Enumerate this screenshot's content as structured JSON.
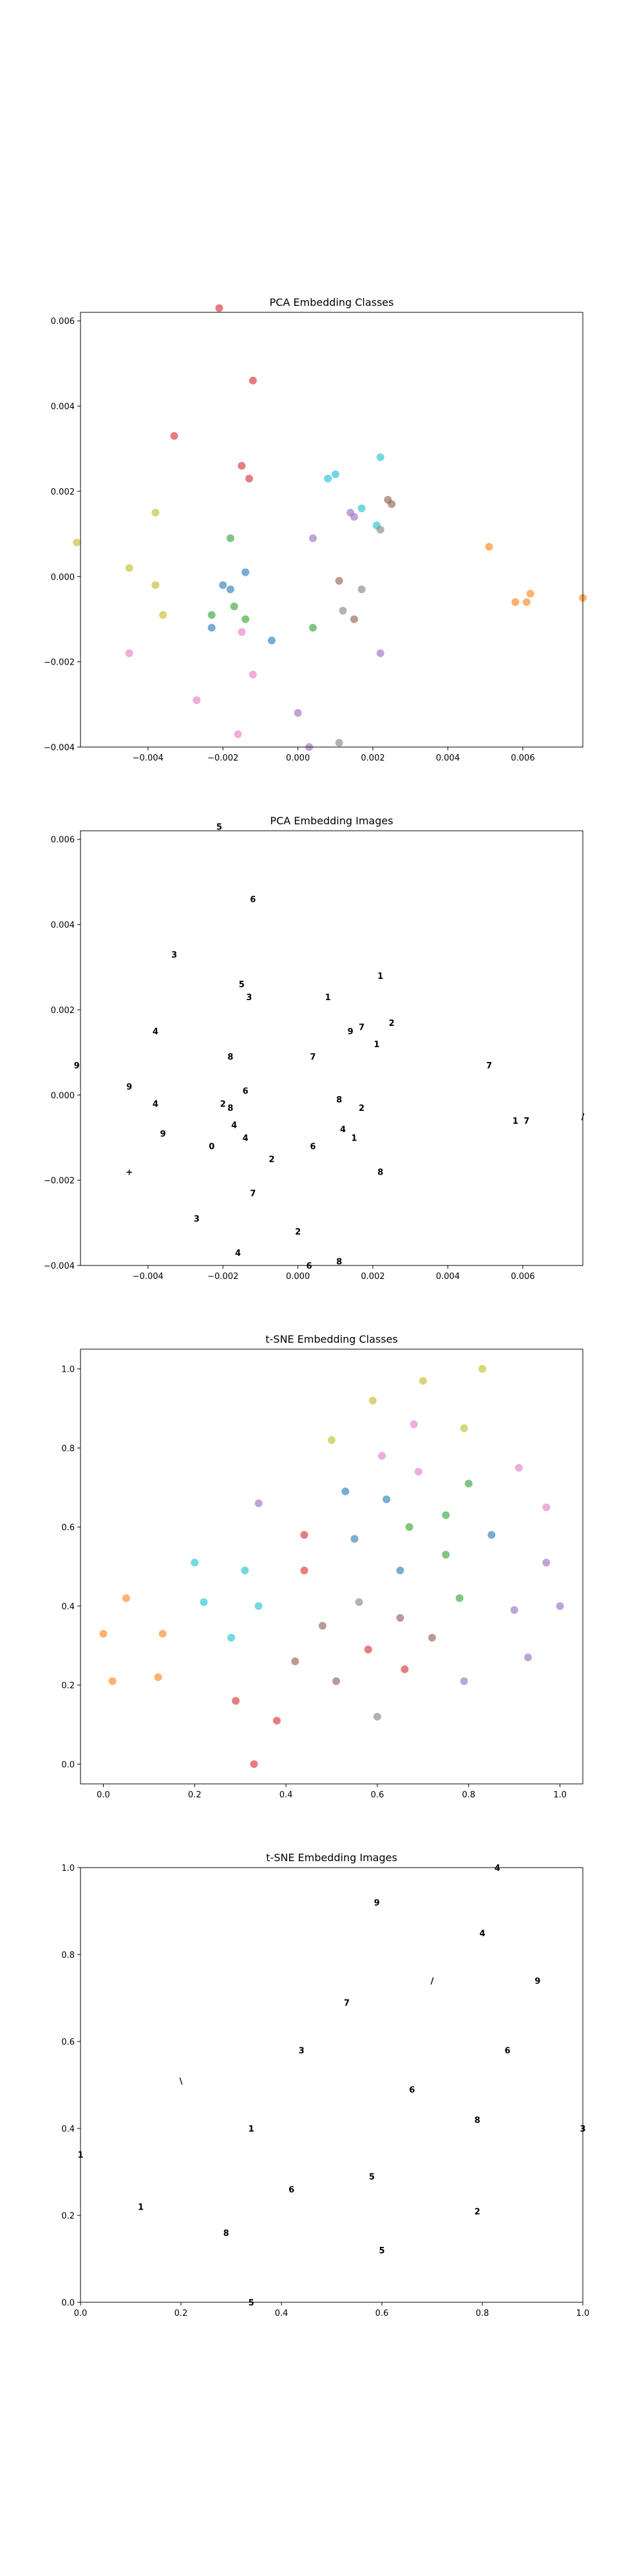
{
  "chart_data": [
    {
      "type": "scatter",
      "title": "PCA Embedding Classes",
      "xlim": [
        -0.0058,
        0.0076
      ],
      "ylim": [
        -0.004,
        0.0062
      ],
      "xticks": [
        -0.004,
        -0.002,
        0.0,
        0.002,
        0.004,
        0.006
      ],
      "xtick_labels": [
        "−0.004",
        "−0.002",
        "0.000",
        "0.002",
        "0.004",
        "0.006"
      ],
      "yticks": [
        -0.004,
        -0.002,
        0.0,
        0.002,
        0.004,
        0.006
      ],
      "ytick_labels": [
        "−0.004",
        "−0.002",
        "0.000",
        "0.002",
        "0.004",
        "0.006"
      ],
      "marker": "dot",
      "points": [
        {
          "x": -0.0021,
          "y": 0.0063,
          "c": "#d62728"
        },
        {
          "x": -0.0012,
          "y": 0.0046,
          "c": "#d62728"
        },
        {
          "x": -0.0033,
          "y": 0.0033,
          "c": "#d62728"
        },
        {
          "x": -0.0015,
          "y": 0.0026,
          "c": "#d62728"
        },
        {
          "x": -0.0013,
          "y": 0.0023,
          "c": "#d62728"
        },
        {
          "x": 0.0022,
          "y": 0.0028,
          "c": "#17becf"
        },
        {
          "x": 0.001,
          "y": 0.0024,
          "c": "#17becf"
        },
        {
          "x": 0.0008,
          "y": 0.0023,
          "c": "#17becf"
        },
        {
          "x": 0.0017,
          "y": 0.0016,
          "c": "#17becf"
        },
        {
          "x": 0.0021,
          "y": 0.0012,
          "c": "#17becf"
        },
        {
          "x": 0.0024,
          "y": 0.0018,
          "c": "#8c564b"
        },
        {
          "x": 0.0025,
          "y": 0.0017,
          "c": "#8c564b"
        },
        {
          "x": 0.0014,
          "y": 0.0015,
          "c": "#9467bd"
        },
        {
          "x": 0.0015,
          "y": 0.0014,
          "c": "#9467bd"
        },
        {
          "x": 0.0022,
          "y": 0.0011,
          "c": "#7f7f7f"
        },
        {
          "x": 0.0004,
          "y": 0.0009,
          "c": "#9467bd"
        },
        {
          "x": -0.0038,
          "y": 0.0015,
          "c": "#bcbd22"
        },
        {
          "x": -0.0045,
          "y": 0.0002,
          "c": "#bcbd22"
        },
        {
          "x": -0.0038,
          "y": -0.0002,
          "c": "#bcbd22"
        },
        {
          "x": -0.0036,
          "y": -0.0009,
          "c": "#bcbd22"
        },
        {
          "x": -0.0059,
          "y": 0.0008,
          "c": "#bcbd22"
        },
        {
          "x": -0.0018,
          "y": 0.0009,
          "c": "#2ca02c"
        },
        {
          "x": -0.0014,
          "y": 0.0001,
          "c": "#1f77b4"
        },
        {
          "x": -0.002,
          "y": -0.0002,
          "c": "#1f77b4"
        },
        {
          "x": -0.0018,
          "y": -0.0003,
          "c": "#1f77b4"
        },
        {
          "x": -0.0017,
          "y": -0.0007,
          "c": "#2ca02c"
        },
        {
          "x": -0.0023,
          "y": -0.0009,
          "c": "#2ca02c"
        },
        {
          "x": -0.0014,
          "y": -0.001,
          "c": "#2ca02c"
        },
        {
          "x": -0.0023,
          "y": -0.0012,
          "c": "#1f77b4"
        },
        {
          "x": -0.0015,
          "y": -0.0013,
          "c": "#e377c2"
        },
        {
          "x": -0.0007,
          "y": -0.0015,
          "c": "#1f77b4"
        },
        {
          "x": 0.0004,
          "y": -0.0012,
          "c": "#2ca02c"
        },
        {
          "x": 0.0011,
          "y": -0.0001,
          "c": "#8c564b"
        },
        {
          "x": 0.0017,
          "y": -0.0003,
          "c": "#7f7f7f"
        },
        {
          "x": 0.0012,
          "y": -0.0008,
          "c": "#7f7f7f"
        },
        {
          "x": 0.0015,
          "y": -0.001,
          "c": "#8c564b"
        },
        {
          "x": 0.0022,
          "y": -0.0018,
          "c": "#9467bd"
        },
        {
          "x": -0.0045,
          "y": -0.0018,
          "c": "#e377c2"
        },
        {
          "x": -0.0012,
          "y": -0.0023,
          "c": "#e377c2"
        },
        {
          "x": -0.0027,
          "y": -0.0029,
          "c": "#e377c2"
        },
        {
          "x": -0.0016,
          "y": -0.0037,
          "c": "#e377c2"
        },
        {
          "x": 0.0,
          "y": -0.0032,
          "c": "#9467bd"
        },
        {
          "x": 0.0003,
          "y": -0.004,
          "c": "#9467bd"
        },
        {
          "x": 0.0011,
          "y": -0.0039,
          "c": "#7f7f7f"
        },
        {
          "x": 0.0051,
          "y": 0.0007,
          "c": "#ff7f0e"
        },
        {
          "x": 0.0058,
          "y": -0.0006,
          "c": "#ff7f0e"
        },
        {
          "x": 0.0061,
          "y": -0.0006,
          "c": "#ff7f0e"
        },
        {
          "x": 0.0062,
          "y": -0.0004,
          "c": "#ff7f0e"
        },
        {
          "x": 0.0076,
          "y": -0.0005,
          "c": "#ff7f0e"
        }
      ]
    },
    {
      "type": "scatter",
      "title": "PCA Embedding Images",
      "xlim": [
        -0.0058,
        0.0076
      ],
      "ylim": [
        -0.004,
        0.0062
      ],
      "xticks": [
        -0.004,
        -0.002,
        0.0,
        0.002,
        0.004,
        0.006
      ],
      "xtick_labels": [
        "−0.004",
        "−0.002",
        "0.000",
        "0.002",
        "0.004",
        "0.006"
      ],
      "yticks": [
        -0.004,
        -0.002,
        0.0,
        0.002,
        0.004,
        0.006
      ],
      "ytick_labels": [
        "−0.004",
        "−0.002",
        "0.000",
        "0.002",
        "0.004",
        "0.006"
      ],
      "marker": "glyph",
      "points": [
        {
          "x": -0.0021,
          "y": 0.0063,
          "g": "5"
        },
        {
          "x": -0.0012,
          "y": 0.0046,
          "g": "6"
        },
        {
          "x": -0.0033,
          "y": 0.0033,
          "g": "3"
        },
        {
          "x": -0.0015,
          "y": 0.0026,
          "g": "5"
        },
        {
          "x": -0.0013,
          "y": 0.0023,
          "g": "3"
        },
        {
          "x": 0.0022,
          "y": 0.0028,
          "g": "1"
        },
        {
          "x": 0.0008,
          "y": 0.0023,
          "g": "1"
        },
        {
          "x": 0.0017,
          "y": 0.0016,
          "g": "7"
        },
        {
          "x": 0.0021,
          "y": 0.0012,
          "g": "1"
        },
        {
          "x": 0.0025,
          "y": 0.0017,
          "g": "2"
        },
        {
          "x": 0.0014,
          "y": 0.0015,
          "g": "9"
        },
        {
          "x": 0.0004,
          "y": 0.0009,
          "g": "7"
        },
        {
          "x": -0.0038,
          "y": 0.0015,
          "g": "4"
        },
        {
          "x": -0.0045,
          "y": 0.0002,
          "g": "9"
        },
        {
          "x": -0.0038,
          "y": -0.0002,
          "g": "4"
        },
        {
          "x": -0.0036,
          "y": -0.0009,
          "g": "9"
        },
        {
          "x": -0.0059,
          "y": 0.0007,
          "g": "9"
        },
        {
          "x": -0.0018,
          "y": 0.0009,
          "g": "8"
        },
        {
          "x": -0.0014,
          "y": 0.0001,
          "g": "6"
        },
        {
          "x": -0.002,
          "y": -0.0002,
          "g": "2"
        },
        {
          "x": -0.0018,
          "y": -0.0003,
          "g": "8"
        },
        {
          "x": -0.0017,
          "y": -0.0007,
          "g": "4"
        },
        {
          "x": -0.0014,
          "y": -0.001,
          "g": "4"
        },
        {
          "x": -0.0023,
          "y": -0.0012,
          "g": "0"
        },
        {
          "x": -0.0007,
          "y": -0.0015,
          "g": "2"
        },
        {
          "x": 0.0004,
          "y": -0.0012,
          "g": "6"
        },
        {
          "x": 0.0011,
          "y": -0.0001,
          "g": "8"
        },
        {
          "x": 0.0017,
          "y": -0.0003,
          "g": "2"
        },
        {
          "x": 0.0012,
          "y": -0.0008,
          "g": "4"
        },
        {
          "x": 0.0015,
          "y": -0.001,
          "g": "1"
        },
        {
          "x": 0.0022,
          "y": -0.0018,
          "g": "8"
        },
        {
          "x": -0.0045,
          "y": -0.0018,
          "g": "+"
        },
        {
          "x": -0.0012,
          "y": -0.0023,
          "g": "7"
        },
        {
          "x": -0.0027,
          "y": -0.0029,
          "g": "3"
        },
        {
          "x": -0.0016,
          "y": -0.0037,
          "g": "4"
        },
        {
          "x": 0.0,
          "y": -0.0032,
          "g": "2"
        },
        {
          "x": 0.0003,
          "y": -0.004,
          "g": "6"
        },
        {
          "x": 0.0011,
          "y": -0.0039,
          "g": "8"
        },
        {
          "x": 0.0051,
          "y": 0.0007,
          "g": "7"
        },
        {
          "x": 0.0058,
          "y": -0.0006,
          "g": "1"
        },
        {
          "x": 0.0061,
          "y": -0.0006,
          "g": "7"
        },
        {
          "x": 0.0076,
          "y": -0.0005,
          "g": "/"
        }
      ]
    },
    {
      "type": "scatter",
      "title": "t-SNE Embedding Classes",
      "xlim": [
        -0.05,
        1.05
      ],
      "ylim": [
        -0.05,
        1.05
      ],
      "xticks": [
        0.0,
        0.2,
        0.4,
        0.6,
        0.8,
        1.0
      ],
      "xtick_labels": [
        "0.0",
        "0.2",
        "0.4",
        "0.6",
        "0.8",
        "1.0"
      ],
      "yticks": [
        0.0,
        0.2,
        0.4,
        0.6,
        0.8,
        1.0
      ],
      "ytick_labels": [
        "0.0",
        "0.2",
        "0.4",
        "0.6",
        "0.8",
        "1.0"
      ],
      "marker": "dot",
      "points": [
        {
          "x": 0.83,
          "y": 1.0,
          "c": "#bcbd22"
        },
        {
          "x": 0.7,
          "y": 0.97,
          "c": "#bcbd22"
        },
        {
          "x": 0.59,
          "y": 0.92,
          "c": "#bcbd22"
        },
        {
          "x": 0.5,
          "y": 0.82,
          "c": "#bcbd22"
        },
        {
          "x": 0.79,
          "y": 0.85,
          "c": "#bcbd22"
        },
        {
          "x": 0.68,
          "y": 0.86,
          "c": "#e377c2"
        },
        {
          "x": 0.61,
          "y": 0.78,
          "c": "#e377c2"
        },
        {
          "x": 0.69,
          "y": 0.74,
          "c": "#e377c2"
        },
        {
          "x": 0.91,
          "y": 0.75,
          "c": "#e377c2"
        },
        {
          "x": 0.97,
          "y": 0.65,
          "c": "#e377c2"
        },
        {
          "x": 0.53,
          "y": 0.69,
          "c": "#1f77b4"
        },
        {
          "x": 0.62,
          "y": 0.67,
          "c": "#1f77b4"
        },
        {
          "x": 0.55,
          "y": 0.57,
          "c": "#1f77b4"
        },
        {
          "x": 0.65,
          "y": 0.49,
          "c": "#1f77b4"
        },
        {
          "x": 0.85,
          "y": 0.58,
          "c": "#1f77b4"
        },
        {
          "x": 0.8,
          "y": 0.71,
          "c": "#2ca02c"
        },
        {
          "x": 0.75,
          "y": 0.63,
          "c": "#2ca02c"
        },
        {
          "x": 0.67,
          "y": 0.6,
          "c": "#2ca02c"
        },
        {
          "x": 0.75,
          "y": 0.53,
          "c": "#2ca02c"
        },
        {
          "x": 0.78,
          "y": 0.42,
          "c": "#2ca02c"
        },
        {
          "x": 0.34,
          "y": 0.66,
          "c": "#9467bd"
        },
        {
          "x": 0.97,
          "y": 0.51,
          "c": "#9467bd"
        },
        {
          "x": 0.9,
          "y": 0.39,
          "c": "#9467bd"
        },
        {
          "x": 1.0,
          "y": 0.4,
          "c": "#9467bd"
        },
        {
          "x": 0.93,
          "y": 0.27,
          "c": "#9467bd"
        },
        {
          "x": 0.44,
          "y": 0.58,
          "c": "#d62728"
        },
        {
          "x": 0.44,
          "y": 0.49,
          "c": "#d62728"
        },
        {
          "x": 0.58,
          "y": 0.29,
          "c": "#d62728"
        },
        {
          "x": 0.66,
          "y": 0.24,
          "c": "#d62728"
        },
        {
          "x": 0.29,
          "y": 0.16,
          "c": "#d62728"
        },
        {
          "x": 0.38,
          "y": 0.11,
          "c": "#d62728"
        },
        {
          "x": 0.33,
          "y": 0.0,
          "c": "#d62728"
        },
        {
          "x": 0.2,
          "y": 0.51,
          "c": "#17becf"
        },
        {
          "x": 0.31,
          "y": 0.49,
          "c": "#17becf"
        },
        {
          "x": 0.22,
          "y": 0.41,
          "c": "#17becf"
        },
        {
          "x": 0.34,
          "y": 0.4,
          "c": "#17becf"
        },
        {
          "x": 0.28,
          "y": 0.32,
          "c": "#17becf"
        },
        {
          "x": 0.05,
          "y": 0.42,
          "c": "#ff7f0e"
        },
        {
          "x": 0.0,
          "y": 0.33,
          "c": "#ff7f0e"
        },
        {
          "x": 0.13,
          "y": 0.33,
          "c": "#ff7f0e"
        },
        {
          "x": 0.02,
          "y": 0.21,
          "c": "#ff7f0e"
        },
        {
          "x": 0.12,
          "y": 0.22,
          "c": "#ff7f0e"
        },
        {
          "x": 0.56,
          "y": 0.41,
          "c": "#7f7f7f"
        },
        {
          "x": 0.48,
          "y": 0.35,
          "c": "#8c564b"
        },
        {
          "x": 0.65,
          "y": 0.37,
          "c": "#8c564b"
        },
        {
          "x": 0.42,
          "y": 0.26,
          "c": "#8c564b"
        },
        {
          "x": 0.51,
          "y": 0.21,
          "c": "#8c564b"
        },
        {
          "x": 0.72,
          "y": 0.32,
          "c": "#8c564b"
        },
        {
          "x": 0.6,
          "y": 0.12,
          "c": "#7f7f7f"
        },
        {
          "x": 0.79,
          "y": 0.21,
          "c": "#9467bd"
        }
      ]
    },
    {
      "type": "scatter",
      "title": "t-SNE Embedding Images",
      "xlim": [
        0.0,
        1.0
      ],
      "ylim": [
        0.0,
        1.0
      ],
      "xticks": [
        0.0,
        0.2,
        0.4,
        0.6,
        0.8,
        1.0
      ],
      "xtick_labels": [
        "0.0",
        "0.2",
        "0.4",
        "0.6",
        "0.8",
        "1.0"
      ],
      "yticks": [
        0.0,
        0.2,
        0.4,
        0.6,
        0.8,
        1.0
      ],
      "ytick_labels": [
        "0.0",
        "0.2",
        "0.4",
        "0.6",
        "0.8",
        "1.0"
      ],
      "marker": "glyph",
      "points": [
        {
          "x": 0.83,
          "y": 1.0,
          "g": "4"
        },
        {
          "x": 0.59,
          "y": 0.92,
          "g": "9"
        },
        {
          "x": 0.8,
          "y": 0.85,
          "g": "4"
        },
        {
          "x": 0.7,
          "y": 0.74,
          "g": "/"
        },
        {
          "x": 0.91,
          "y": 0.74,
          "g": "9"
        },
        {
          "x": 0.53,
          "y": 0.69,
          "g": "7"
        },
        {
          "x": 0.44,
          "y": 0.58,
          "g": "3"
        },
        {
          "x": 0.85,
          "y": 0.58,
          "g": "6"
        },
        {
          "x": 0.2,
          "y": 0.51,
          "g": "\\"
        },
        {
          "x": 0.66,
          "y": 0.49,
          "g": "6"
        },
        {
          "x": 0.79,
          "y": 0.42,
          "g": "8"
        },
        {
          "x": 0.34,
          "y": 0.4,
          "g": "1"
        },
        {
          "x": 1.0,
          "y": 0.4,
          "g": "3"
        },
        {
          "x": 0.0,
          "y": 0.34,
          "g": "1"
        },
        {
          "x": 0.58,
          "y": 0.29,
          "g": "5"
        },
        {
          "x": 0.42,
          "y": 0.26,
          "g": "6"
        },
        {
          "x": 0.12,
          "y": 0.22,
          "g": "1"
        },
        {
          "x": 0.79,
          "y": 0.21,
          "g": "2"
        },
        {
          "x": 0.29,
          "y": 0.16,
          "g": "8"
        },
        {
          "x": 0.6,
          "y": 0.12,
          "g": "5"
        },
        {
          "x": 0.34,
          "y": 0.0,
          "g": "5"
        }
      ]
    }
  ]
}
